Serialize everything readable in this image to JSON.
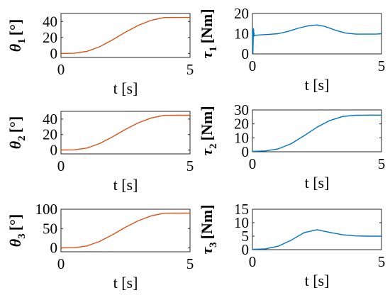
{
  "chart_data": [
    {
      "type": "line",
      "ylabel_symbol": "θ",
      "ylabel_sub": "1",
      "ylabel_unit": "[°]",
      "xlabel": "t [s]",
      "xlim": [
        0,
        5
      ],
      "ylim": [
        -5,
        50
      ],
      "xticks": [
        "0",
        "5"
      ],
      "yticks": [
        "0",
        "20",
        "40"
      ],
      "ytick_values": [
        0,
        20,
        40
      ],
      "color": "#D95319",
      "series": [
        {
          "x": [
            0,
            0.5,
            1.0,
            1.5,
            2.0,
            2.5,
            3.0,
            3.5,
            4.0,
            4.5,
            5.0
          ],
          "y": [
            0,
            0.2,
            2.5,
            8.4,
            17.1,
            26.7,
            35.2,
            41.5,
            44.9,
            45.0,
            45.0
          ]
        }
      ]
    },
    {
      "type": "line",
      "ylabel_symbol": "τ",
      "ylabel_sub": "1",
      "ylabel_unit": "[Nm]",
      "xlabel": "t [s]",
      "xlim": [
        0,
        5
      ],
      "ylim": [
        0,
        20
      ],
      "xticks": [
        "0",
        "5"
      ],
      "yticks": [
        "0",
        "10",
        "20"
      ],
      "ytick_values": [
        0,
        10,
        20
      ],
      "color": "#0072BD",
      "series": [
        {
          "x": [
            0,
            0.02,
            0.04,
            0.06,
            0.08,
            0.1,
            0.3,
            0.6,
            1.0,
            1.4,
            1.8,
            2.2,
            2.5,
            2.8,
            3.2,
            3.6,
            4.0,
            4.4,
            4.8,
            5.0
          ],
          "y": [
            12,
            0.3,
            12.5,
            8.8,
            9.3,
            9.2,
            9.4,
            9.6,
            10.0,
            11.2,
            12.8,
            14.0,
            14.3,
            13.6,
            11.8,
            10.3,
            9.8,
            9.8,
            9.8,
            10.0
          ]
        }
      ]
    },
    {
      "type": "line",
      "ylabel_symbol": "θ",
      "ylabel_sub": "2",
      "ylabel_unit": "[°]",
      "xlabel": "t [s]",
      "xlim": [
        0,
        5
      ],
      "ylim": [
        -5,
        50
      ],
      "xticks": [
        "0",
        "5"
      ],
      "yticks": [
        "0",
        "20",
        "40"
      ],
      "ytick_values": [
        0,
        20,
        40
      ],
      "color": "#D95319",
      "series": [
        {
          "x": [
            0,
            0.5,
            1.0,
            1.5,
            2.0,
            2.5,
            3.0,
            3.5,
            4.0,
            4.5,
            5.0
          ],
          "y": [
            0,
            0.2,
            2.5,
            8.4,
            17.1,
            26.7,
            35.2,
            41.5,
            44.9,
            45.0,
            45.0
          ]
        }
      ]
    },
    {
      "type": "line",
      "ylabel_symbol": "τ",
      "ylabel_sub": "2",
      "ylabel_unit": "[Nm]",
      "xlabel": "t [s]",
      "xlim": [
        0,
        5
      ],
      "ylim": [
        0,
        30
      ],
      "xticks": [
        "0",
        "5"
      ],
      "yticks": [
        "0",
        "10",
        "20",
        "30"
      ],
      "ytick_values": [
        0,
        10,
        20,
        30
      ],
      "color": "#0072BD",
      "series": [
        {
          "x": [
            0,
            0.5,
            1.0,
            1.5,
            2.0,
            2.5,
            3.0,
            3.5,
            4.0,
            4.5,
            5.0
          ],
          "y": [
            0.3,
            0.6,
            2.1,
            5.8,
            11.5,
            17.6,
            22.4,
            25.3,
            26.2,
            26.3,
            26.3
          ]
        }
      ]
    },
    {
      "type": "line",
      "ylabel_symbol": "θ",
      "ylabel_sub": "3",
      "ylabel_unit": "[°]",
      "xlabel": "t [s]",
      "xlim": [
        0,
        5
      ],
      "ylim": [
        -10,
        100
      ],
      "xticks": [
        "0",
        "5"
      ],
      "yticks": [
        "0",
        "50",
        "100"
      ],
      "ytick_values": [
        0,
        50,
        100
      ],
      "color": "#D95319",
      "series": [
        {
          "x": [
            0,
            0.5,
            1.0,
            1.5,
            2.0,
            2.5,
            3.0,
            3.5,
            4.0,
            4.5,
            5.0
          ],
          "y": [
            0,
            0.4,
            5.0,
            16.8,
            34.2,
            53.4,
            70.4,
            83.0,
            89.8,
            90.0,
            90.0
          ]
        }
      ]
    },
    {
      "type": "line",
      "ylabel_symbol": "τ",
      "ylabel_sub": "3",
      "ylabel_unit": "[Nm]",
      "xlabel": "t [s]",
      "xlim": [
        0,
        5
      ],
      "ylim": [
        0,
        15
      ],
      "xticks": [
        "0",
        "5"
      ],
      "yticks": [
        "0",
        "5",
        "10",
        "15"
      ],
      "ytick_values": [
        0,
        5,
        10,
        15
      ],
      "color": "#0072BD",
      "series": [
        {
          "x": [
            0,
            0.5,
            1.0,
            1.5,
            2.0,
            2.5,
            3.0,
            3.5,
            4.0,
            4.5,
            5.0
          ],
          "y": [
            0.1,
            0.3,
            1.3,
            3.5,
            6.3,
            7.4,
            6.4,
            5.5,
            5.1,
            5.0,
            5.0
          ]
        }
      ]
    }
  ]
}
